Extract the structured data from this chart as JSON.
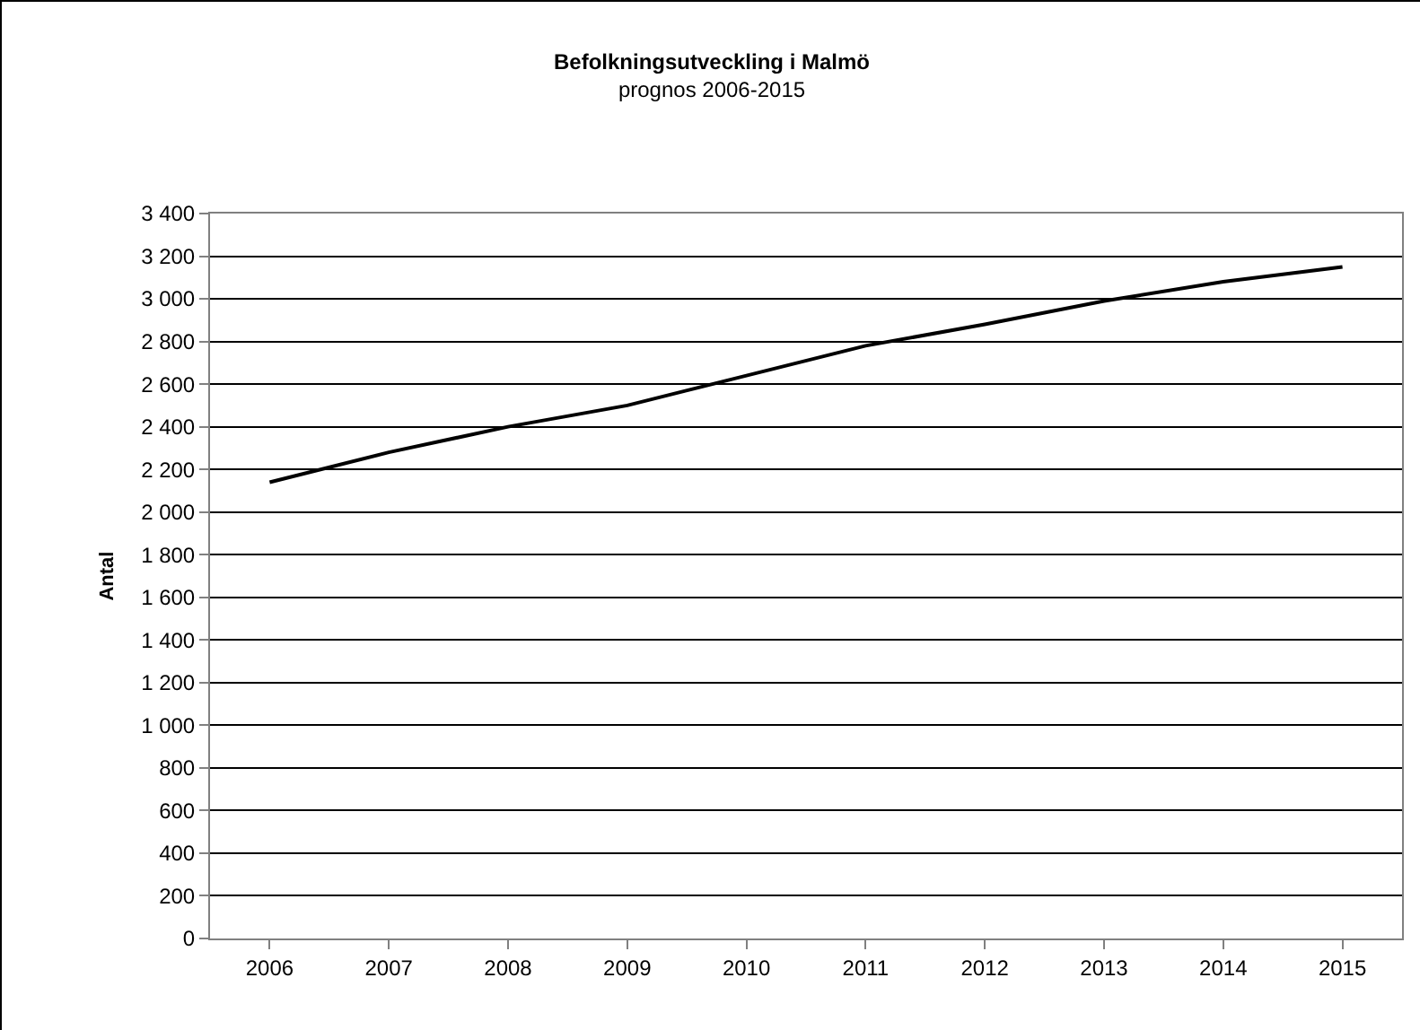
{
  "chart_data": {
    "type": "line",
    "title": "Befolkningsutveckling i Malmö",
    "subtitle": "prognos 2006-2015",
    "ylabel": "Antal",
    "categories": [
      "2006",
      "2007",
      "2008",
      "2009",
      "2010",
      "2011",
      "2012",
      "2013",
      "2014",
      "2015"
    ],
    "series": [
      {
        "color": "#000000",
        "values": [
          2140,
          2280,
          2400,
          2500,
          2640,
          2780,
          2880,
          2990,
          3080,
          3150
        ]
      }
    ],
    "ylim": [
      0,
      3400
    ],
    "yticks": [
      0,
      200,
      400,
      600,
      800,
      {
        "value": 1000,
        "label": "1 000"
      },
      {
        "value": 1200,
        "label": "1 200"
      },
      {
        "value": 1400,
        "label": "1 400"
      },
      {
        "value": 1600,
        "label": "1 600"
      },
      {
        "value": 1800,
        "label": "1 800"
      },
      {
        "value": 2000,
        "label": "2 000"
      },
      {
        "value": 2200,
        "label": "2 200"
      },
      {
        "value": 2400,
        "label": "2 400"
      },
      {
        "value": 2600,
        "label": "2 600"
      },
      {
        "value": 2800,
        "label": "2 800"
      },
      {
        "value": 3000,
        "label": "3 000"
      },
      {
        "value": 3200,
        "label": "3 200"
      },
      {
        "value": 3400,
        "label": "3 400"
      }
    ],
    "grid": "y",
    "marker": "none",
    "line_style": "solid"
  }
}
